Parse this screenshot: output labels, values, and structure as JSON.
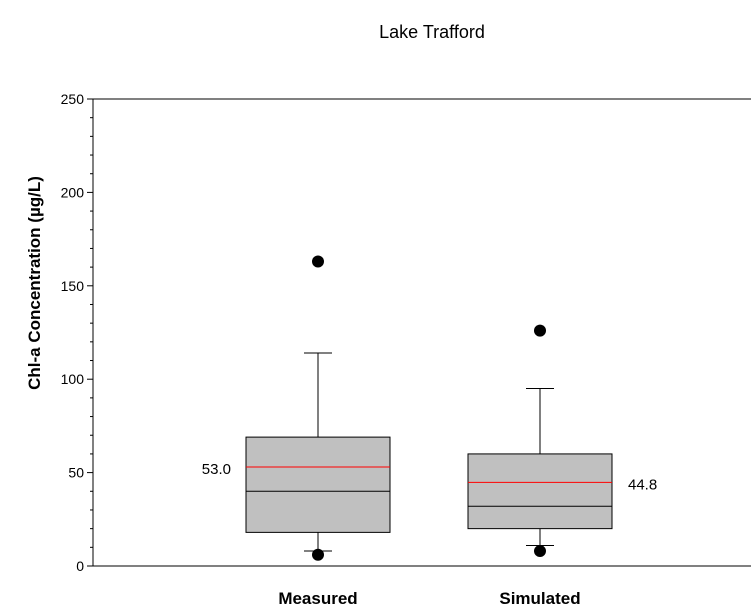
{
  "chart_data": {
    "type": "box",
    "title": "Lake Trafford",
    "ylabel": "Chl-a Concentration (µg/L)",
    "xlabel": "",
    "ylim": [
      0,
      250
    ],
    "yticks": [
      0,
      50,
      100,
      150,
      200,
      250
    ],
    "grid": false,
    "categories": [
      "Measured",
      "Simulated"
    ],
    "boxes": [
      {
        "category": "Measured",
        "whisker_low": 8,
        "q1": 18,
        "median": 40,
        "mean": 53.0,
        "q3": 69,
        "whisker_high": 114,
        "outliers": [
          6,
          163
        ],
        "mean_label": "53.0",
        "mean_label_side": "left"
      },
      {
        "category": "Simulated",
        "whisker_low": 11,
        "q1": 20,
        "median": 32,
        "mean": 44.8,
        "q3": 60,
        "whisker_high": 95,
        "outliers": [
          8,
          126
        ],
        "mean_label": "44.8",
        "mean_label_side": "right"
      }
    ],
    "colors": {
      "box_fill": "#c0c0c0",
      "mean_line": "#ff0000",
      "median_line": "#000000"
    }
  }
}
